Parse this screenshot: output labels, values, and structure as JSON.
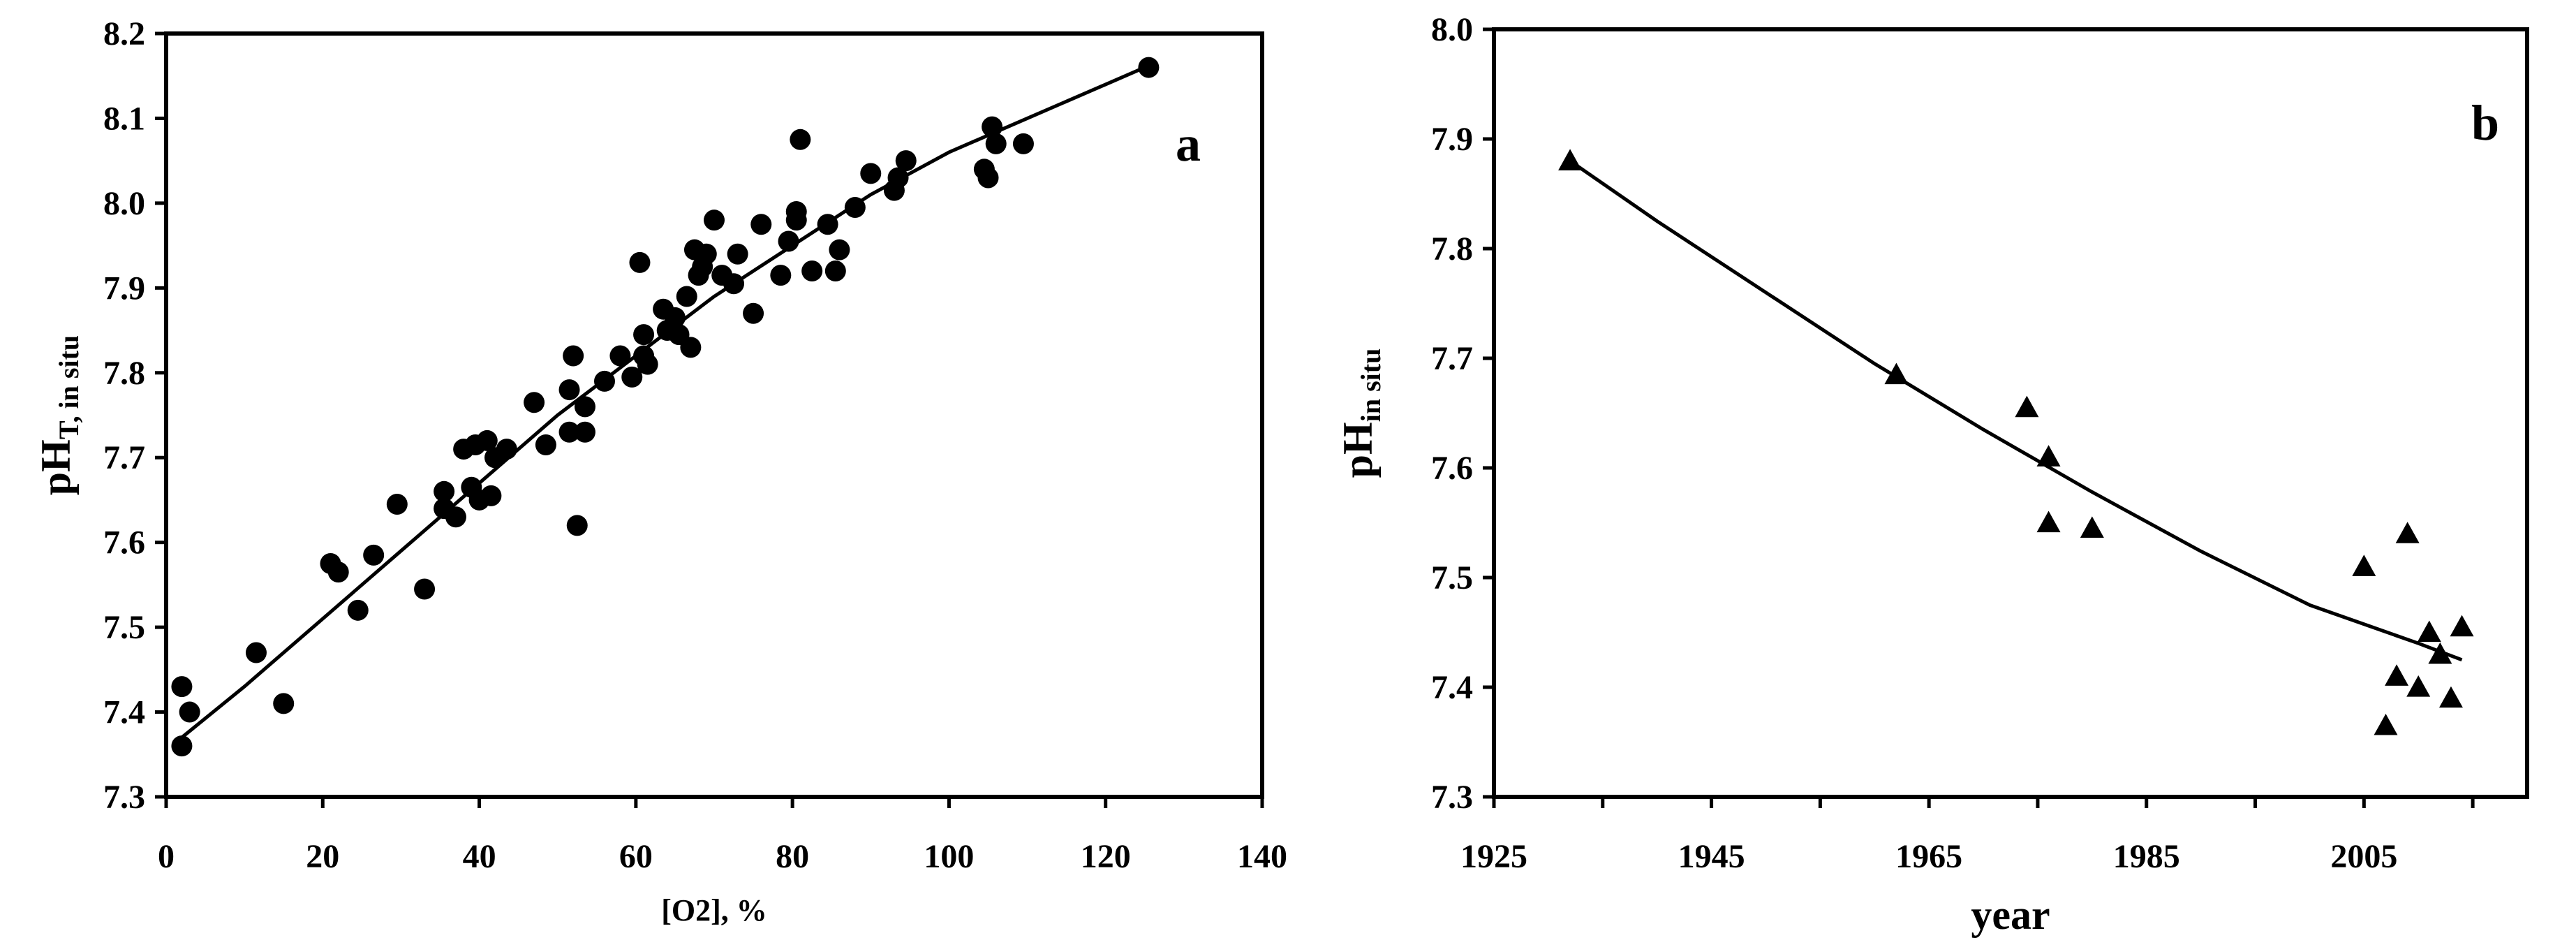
{
  "chart_data": [
    {
      "type": "scatter",
      "panel_label": "a",
      "xlabel": "[O2], %",
      "ylabel_main": "pH",
      "ylabel_sub": "T, in situ",
      "xlim": [
        0,
        140
      ],
      "ylim": [
        7.3,
        8.2
      ],
      "xticks": [
        "0",
        "20",
        "40",
        "60",
        "80",
        "100",
        "120",
        "140"
      ],
      "yticks": [
        "7.3",
        "7.4",
        "7.5",
        "7.6",
        "7.7",
        "7.8",
        "7.9",
        "8.0",
        "8.1",
        "8.2"
      ],
      "grid": false,
      "marker": "circle",
      "points": [
        {
          "x": 2,
          "y": 7.36
        },
        {
          "x": 2,
          "y": 7.43
        },
        {
          "x": 3,
          "y": 7.4
        },
        {
          "x": 11.5,
          "y": 7.47
        },
        {
          "x": 15,
          "y": 7.41
        },
        {
          "x": 21,
          "y": 7.575
        },
        {
          "x": 22,
          "y": 7.565
        },
        {
          "x": 24.5,
          "y": 7.52
        },
        {
          "x": 26.5,
          "y": 7.585
        },
        {
          "x": 29.5,
          "y": 7.645
        },
        {
          "x": 33,
          "y": 7.545
        },
        {
          "x": 35.5,
          "y": 7.66
        },
        {
          "x": 35.5,
          "y": 7.64
        },
        {
          "x": 37,
          "y": 7.63
        },
        {
          "x": 38,
          "y": 7.71
        },
        {
          "x": 39,
          "y": 7.665
        },
        {
          "x": 39.5,
          "y": 7.715
        },
        {
          "x": 40,
          "y": 7.65
        },
        {
          "x": 41,
          "y": 7.72
        },
        {
          "x": 41.5,
          "y": 7.655
        },
        {
          "x": 42,
          "y": 7.7
        },
        {
          "x": 43.5,
          "y": 7.71
        },
        {
          "x": 47,
          "y": 7.765
        },
        {
          "x": 48.5,
          "y": 7.715
        },
        {
          "x": 51.5,
          "y": 7.78
        },
        {
          "x": 51.5,
          "y": 7.73
        },
        {
          "x": 52,
          "y": 7.82
        },
        {
          "x": 52.5,
          "y": 7.62
        },
        {
          "x": 53.5,
          "y": 7.76
        },
        {
          "x": 53.5,
          "y": 7.73
        },
        {
          "x": 56,
          "y": 7.79
        },
        {
          "x": 58,
          "y": 7.82
        },
        {
          "x": 59.5,
          "y": 7.795
        },
        {
          "x": 60.5,
          "y": 7.93
        },
        {
          "x": 61,
          "y": 7.845
        },
        {
          "x": 61,
          "y": 7.82
        },
        {
          "x": 61.5,
          "y": 7.81
        },
        {
          "x": 63.5,
          "y": 7.875
        },
        {
          "x": 64,
          "y": 7.85
        },
        {
          "x": 65,
          "y": 7.865
        },
        {
          "x": 65.5,
          "y": 7.845
        },
        {
          "x": 66.5,
          "y": 7.89
        },
        {
          "x": 67,
          "y": 7.83
        },
        {
          "x": 67.5,
          "y": 7.945
        },
        {
          "x": 68,
          "y": 7.915
        },
        {
          "x": 68.5,
          "y": 7.925
        },
        {
          "x": 69,
          "y": 7.94
        },
        {
          "x": 70,
          "y": 7.98
        },
        {
          "x": 71,
          "y": 7.915
        },
        {
          "x": 72.5,
          "y": 7.905
        },
        {
          "x": 73,
          "y": 7.94
        },
        {
          "x": 75,
          "y": 7.87
        },
        {
          "x": 76,
          "y": 7.975
        },
        {
          "x": 78.5,
          "y": 7.915
        },
        {
          "x": 79.5,
          "y": 7.955
        },
        {
          "x": 80.5,
          "y": 7.98
        },
        {
          "x": 80.5,
          "y": 7.99
        },
        {
          "x": 81,
          "y": 8.075
        },
        {
          "x": 82.5,
          "y": 7.92
        },
        {
          "x": 84.5,
          "y": 7.975
        },
        {
          "x": 85.5,
          "y": 7.92
        },
        {
          "x": 86,
          "y": 7.945
        },
        {
          "x": 88,
          "y": 7.995
        },
        {
          "x": 90,
          "y": 8.035
        },
        {
          "x": 93,
          "y": 8.015
        },
        {
          "x": 93.5,
          "y": 8.03
        },
        {
          "x": 94.5,
          "y": 8.05
        },
        {
          "x": 104.5,
          "y": 8.04
        },
        {
          "x": 105,
          "y": 8.03
        },
        {
          "x": 105.5,
          "y": 8.09
        },
        {
          "x": 106,
          "y": 8.07
        },
        {
          "x": 109.5,
          "y": 8.07
        },
        {
          "x": 125.5,
          "y": 8.16
        }
      ],
      "trend": [
        {
          "x": 2,
          "y": 7.37
        },
        {
          "x": 10,
          "y": 7.43
        },
        {
          "x": 20,
          "y": 7.51
        },
        {
          "x": 30,
          "y": 7.59
        },
        {
          "x": 40,
          "y": 7.67
        },
        {
          "x": 50,
          "y": 7.75
        },
        {
          "x": 60,
          "y": 7.82
        },
        {
          "x": 70,
          "y": 7.89
        },
        {
          "x": 80,
          "y": 7.95
        },
        {
          "x": 90,
          "y": 8.01
        },
        {
          "x": 100,
          "y": 8.06
        },
        {
          "x": 110,
          "y": 8.1
        },
        {
          "x": 120,
          "y": 8.14
        },
        {
          "x": 125,
          "y": 8.16
        }
      ]
    },
    {
      "type": "scatter",
      "panel_label": "b",
      "xlabel": "year",
      "ylabel_main": "pH",
      "ylabel_sub": "in situ",
      "xlim": [
        1925,
        2020
      ],
      "ylim": [
        7.3,
        8.0
      ],
      "xticks": [
        "1925",
        "1945",
        "1965",
        "1985",
        "2005"
      ],
      "xtick_values": [
        1925,
        1945,
        1965,
        1985,
        2005
      ],
      "yticks": [
        "7.3",
        "7.4",
        "7.5",
        "7.6",
        "7.7",
        "7.8",
        "7.9",
        "8.0"
      ],
      "grid": false,
      "marker": "triangle",
      "points": [
        {
          "x": 1932,
          "y": 7.88
        },
        {
          "x": 1962,
          "y": 7.685
        },
        {
          "x": 1974,
          "y": 7.655
        },
        {
          "x": 1976,
          "y": 7.61
        },
        {
          "x": 1976,
          "y": 7.55
        },
        {
          "x": 1980,
          "y": 7.545
        },
        {
          "x": 2005,
          "y": 7.51
        },
        {
          "x": 2009,
          "y": 7.54
        },
        {
          "x": 2010,
          "y": 7.4
        },
        {
          "x": 2008,
          "y": 7.41
        },
        {
          "x": 2007,
          "y": 7.365
        },
        {
          "x": 2011,
          "y": 7.45
        },
        {
          "x": 2012,
          "y": 7.43
        },
        {
          "x": 2013,
          "y": 7.39
        },
        {
          "x": 2014,
          "y": 7.455
        }
      ],
      "trend": [
        {
          "x": 1932,
          "y": 7.88
        },
        {
          "x": 1940,
          "y": 7.825
        },
        {
          "x": 1950,
          "y": 7.76
        },
        {
          "x": 1960,
          "y": 7.695
        },
        {
          "x": 1970,
          "y": 7.635
        },
        {
          "x": 1980,
          "y": 7.578
        },
        {
          "x": 1990,
          "y": 7.524
        },
        {
          "x": 2000,
          "y": 7.475
        },
        {
          "x": 2010,
          "y": 7.44
        },
        {
          "x": 2014,
          "y": 7.425
        }
      ]
    }
  ]
}
